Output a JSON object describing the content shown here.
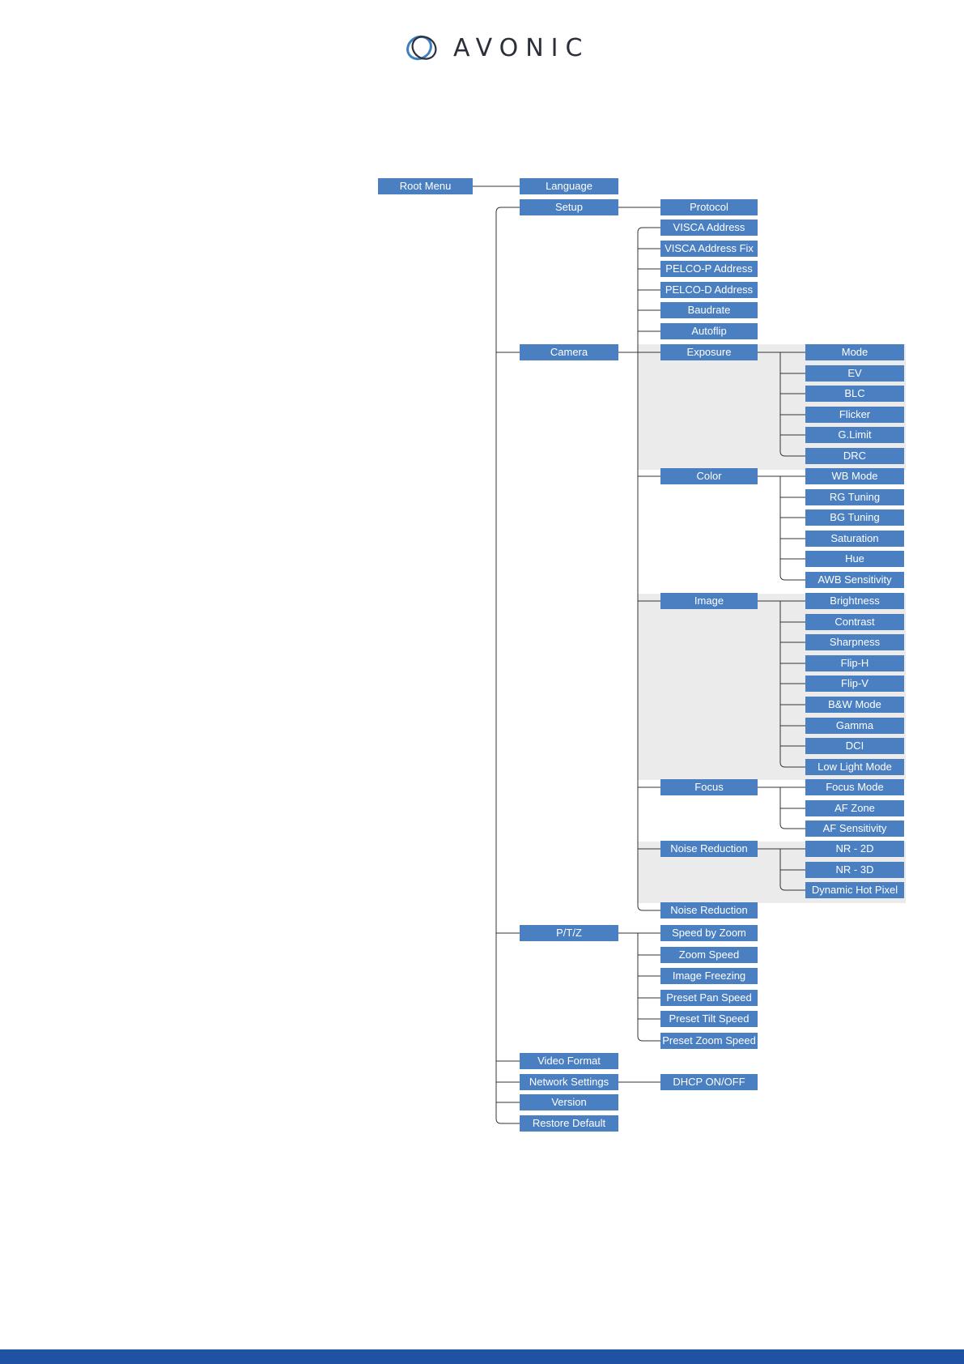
{
  "brand": {
    "name": "AVONIC",
    "mark_icon": "avonic-logo-mark"
  },
  "colors": {
    "node_fill": "#4a7fc1",
    "group_shade": "#ebebeb",
    "connector": "#333333",
    "footer": "#1f52a3"
  },
  "menu": {
    "root": "Root Menu",
    "level1": [
      "Language",
      "Setup",
      "Camera",
      "P/T/Z",
      "Video Format",
      "Network Settings",
      "Version",
      "Restore Default"
    ],
    "setup": [
      "Protocol",
      "VISCA Address",
      "VISCA Address Fix",
      "PELCO-P Address",
      "PELCO-D Address",
      "Baudrate",
      "Autoflip"
    ],
    "camera": [
      "Exposure",
      "Color",
      "Image",
      "Focus",
      "Noise Reduction",
      "Noise Reduction"
    ],
    "exposure": [
      "Mode",
      "EV",
      "BLC",
      "Flicker",
      "G.Limit",
      "DRC"
    ],
    "color": [
      "WB Mode",
      "RG Tuning",
      "BG Tuning",
      "Saturation",
      "Hue",
      "AWB Sensitivity"
    ],
    "image": [
      "Brightness",
      "Contrast",
      "Sharpness",
      "Flip-H",
      "Flip-V",
      "B&W Mode",
      "Gamma",
      "DCI",
      "Low Light Mode"
    ],
    "focus": [
      "Focus Mode",
      "AF Zone",
      "AF Sensitivity"
    ],
    "noise_reduction": [
      "NR - 2D",
      "NR - 3D",
      "Dynamic Hot Pixel"
    ],
    "ptz": [
      "Speed by Zoom",
      "Zoom Speed",
      "Image Freezing",
      "Preset Pan Speed",
      "Preset Tilt Speed",
      "Preset Zoom Speed"
    ],
    "network": [
      "DHCP ON/OFF"
    ]
  }
}
